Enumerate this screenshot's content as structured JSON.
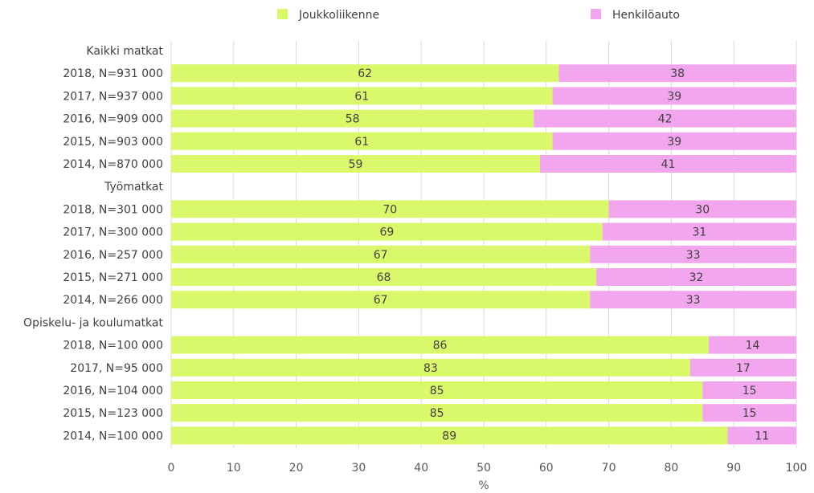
{
  "chart_data": {
    "type": "bar",
    "orientation": "horizontal",
    "stacked": true,
    "xlabel": "%",
    "xlim": [
      0,
      100
    ],
    "xticks": [
      "0",
      "10",
      "20",
      "30",
      "40",
      "50",
      "60",
      "70",
      "80",
      "90",
      "100"
    ],
    "grid": true,
    "legend_position": "top",
    "series": [
      {
        "name": "Joukkoliikenne",
        "color": "#d9f96b"
      },
      {
        "name": "Henkilöauto",
        "color": "#f2a6ee"
      }
    ],
    "rows": [
      {
        "kind": "group",
        "label": "Kaikki matkat"
      },
      {
        "kind": "bar",
        "label": "2018, N=931 000",
        "values": [
          62,
          38
        ]
      },
      {
        "kind": "bar",
        "label": "2017, N=937 000",
        "values": [
          61,
          39
        ]
      },
      {
        "kind": "bar",
        "label": "2016, N=909 000",
        "values": [
          58,
          42
        ]
      },
      {
        "kind": "bar",
        "label": "2015, N=903 000",
        "values": [
          61,
          39
        ]
      },
      {
        "kind": "bar",
        "label": "2014, N=870 000",
        "values": [
          59,
          41
        ]
      },
      {
        "kind": "group",
        "label": "Työmatkat"
      },
      {
        "kind": "bar",
        "label": "2018, N=301 000",
        "values": [
          70,
          30
        ]
      },
      {
        "kind": "bar",
        "label": "2017, N=300 000",
        "values": [
          69,
          31
        ]
      },
      {
        "kind": "bar",
        "label": "2016, N=257 000",
        "values": [
          67,
          33
        ]
      },
      {
        "kind": "bar",
        "label": "2015, N=271 000",
        "values": [
          68,
          32
        ]
      },
      {
        "kind": "bar",
        "label": "2014, N=266 000",
        "values": [
          67,
          33
        ]
      },
      {
        "kind": "group",
        "label": "Opiskelu- ja koulumatkat"
      },
      {
        "kind": "bar",
        "label": "2018, N=100 000",
        "values": [
          86,
          14
        ]
      },
      {
        "kind": "bar",
        "label": "2017, N=95 000",
        "values": [
          83,
          17
        ]
      },
      {
        "kind": "bar",
        "label": "2016, N=104 000",
        "values": [
          85,
          15
        ]
      },
      {
        "kind": "bar",
        "label": "2015, N=123 000",
        "values": [
          85,
          15
        ]
      },
      {
        "kind": "bar",
        "label": "2014, N=100 000",
        "values": [
          89,
          11
        ]
      }
    ]
  }
}
